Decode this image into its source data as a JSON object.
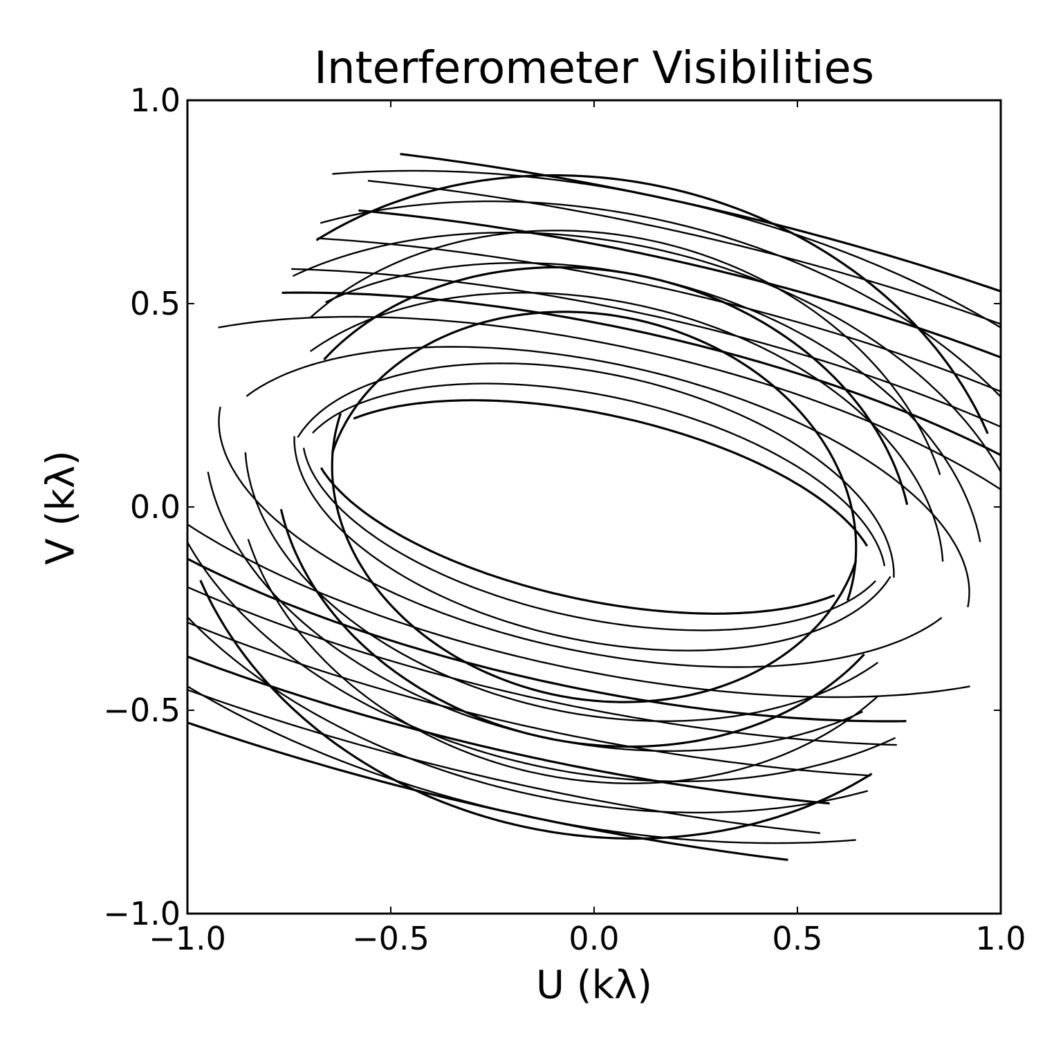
{
  "chart_data": {
    "type": "line",
    "title": "Interferometer Visibilities",
    "xlabel": "U (kλ)",
    "ylabel": "V (kλ)",
    "xlim": [
      -1.0,
      1.0
    ],
    "ylim": [
      -1.0,
      1.0
    ],
    "xticks": [
      "−1.0",
      "−0.5",
      "0.0",
      "0.5",
      "1.0"
    ],
    "yticks": [
      "−1.0",
      "−0.5",
      "0.0",
      "0.5",
      "1.0"
    ],
    "grid": false,
    "line_color": "#000000",
    "tracks": {
      "description_of_model": "uv-plane elliptical baseline tracks (earth-rotation synthesis), conjugate symmetric",
      "baselines": [
        {
          "a": 0.72,
          "b": 0.31,
          "theta_start": 200,
          "theta_end": 330
        },
        {
          "a": 0.74,
          "b": 0.36,
          "theta_start": 190,
          "theta_end": 345
        },
        {
          "a": 0.76,
          "b": 0.42,
          "theta_start": 185,
          "theta_end": 350
        },
        {
          "a": 0.66,
          "b": 0.58,
          "theta_start": 175,
          "theta_end": 355
        },
        {
          "a": 0.88,
          "b": 0.62,
          "theta_start": 190,
          "theta_end": 330
        },
        {
          "a": 0.98,
          "b": 0.7,
          "theta_start": 195,
          "theta_end": 320
        },
        {
          "a": 0.8,
          "b": 0.7,
          "theta_start": 200,
          "theta_end": 335
        },
        {
          "a": 1.1,
          "b": 0.78,
          "theta_start": 200,
          "theta_end": 320
        },
        {
          "a": 1.25,
          "b": 0.86,
          "theta_start": 205,
          "theta_end": 310
        },
        {
          "a": 1.05,
          "b": 0.95,
          "theta_start": 210,
          "theta_end": 320
        },
        {
          "a": 0.95,
          "b": 0.45,
          "theta_start": 180,
          "theta_end": 340
        },
        {
          "a": 1.3,
          "b": 0.5,
          "theta_start": 190,
          "theta_end": 320
        },
        {
          "a": 1.5,
          "b": 0.55,
          "theta_start": 195,
          "theta_end": 305
        },
        {
          "a": 1.7,
          "b": 0.6,
          "theta_start": 200,
          "theta_end": 300
        },
        {
          "a": 1.9,
          "b": 0.68,
          "theta_start": 205,
          "theta_end": 295
        },
        {
          "a": 2.1,
          "b": 0.76,
          "theta_start": 210,
          "theta_end": 290
        },
        {
          "a": 2.3,
          "b": 0.84,
          "theta_start": 212,
          "theta_end": 288
        },
        {
          "a": 1.6,
          "b": 0.92,
          "theta_start": 215,
          "theta_end": 300
        },
        {
          "a": 2.5,
          "b": 0.92,
          "theta_start": 214,
          "theta_end": 285
        },
        {
          "a": 0.9,
          "b": 0.8,
          "theta_start": 205,
          "theta_end": 330
        }
      ],
      "rotation_deg": -12
    }
  }
}
